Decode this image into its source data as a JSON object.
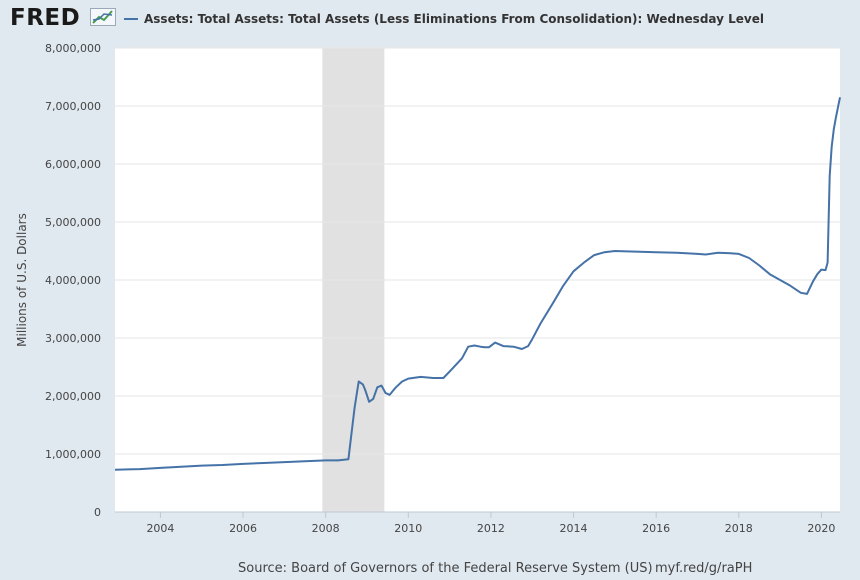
{
  "header": {
    "logo_text": "FRED",
    "legend_label": "Assets: Total Assets: Total Assets (Less Eliminations From Consolidation): Wednesday Level"
  },
  "footer": {
    "source": "Source: Board of Governors of the Federal Reserve System (US)",
    "link": "myf.red/g/raPH"
  },
  "chart_data": {
    "type": "line",
    "title": "Assets: Total Assets: Total Assets (Less Eliminations From Consolidation): Wednesday Level",
    "xlabel": "",
    "ylabel": "Millions of U.S. Dollars",
    "xlim": [
      2002.9,
      2020.45
    ],
    "ylim": [
      0,
      8000000
    ],
    "x_ticks": [
      2004,
      2006,
      2008,
      2010,
      2012,
      2014,
      2016,
      2018,
      2020
    ],
    "x_tick_labels": [
      "2004",
      "2006",
      "2008",
      "2010",
      "2012",
      "2014",
      "2016",
      "2018",
      "2020"
    ],
    "y_ticks": [
      0,
      1000000,
      2000000,
      3000000,
      4000000,
      5000000,
      6000000,
      7000000,
      8000000
    ],
    "y_tick_labels": [
      "0",
      "1,000,000",
      "2,000,000",
      "3,000,000",
      "4,000,000",
      "5,000,000",
      "6,000,000",
      "7,000,000",
      "8,000,000"
    ],
    "grid": true,
    "recession_shading": [
      {
        "start": 2007.92,
        "end": 2009.42
      }
    ],
    "series": [
      {
        "name": "Assets: Total Assets: Total Assets (Less Eliminations From Consolidation): Wednesday Level",
        "color": "#4572a7",
        "x": [
          2002.9,
          2003.5,
          2004.0,
          2004.5,
          2005.0,
          2005.5,
          2006.0,
          2006.5,
          2007.0,
          2007.5,
          2008.0,
          2008.3,
          2008.55,
          2008.7,
          2008.8,
          2008.9,
          2008.96,
          2009.05,
          2009.15,
          2009.25,
          2009.35,
          2009.45,
          2009.55,
          2009.7,
          2009.85,
          2010.0,
          2010.3,
          2010.6,
          2010.85,
          2011.0,
          2011.3,
          2011.45,
          2011.6,
          2011.75,
          2011.85,
          2011.95,
          2012.1,
          2012.3,
          2012.55,
          2012.75,
          2012.9,
          2013.0,
          2013.2,
          2013.5,
          2013.75,
          2014.0,
          2014.25,
          2014.5,
          2014.75,
          2015.0,
          2015.5,
          2016.0,
          2016.5,
          2017.0,
          2017.2,
          2017.5,
          2017.8,
          2018.0,
          2018.25,
          2018.5,
          2018.75,
          2019.0,
          2019.25,
          2019.5,
          2019.65,
          2019.8,
          2019.9,
          2020.0,
          2020.1,
          2020.15,
          2020.2,
          2020.25,
          2020.3,
          2020.35,
          2020.45
        ],
        "values": [
          730000,
          740000,
          760000,
          780000,
          800000,
          810000,
          830000,
          845000,
          860000,
          875000,
          890000,
          890000,
          910000,
          1800000,
          2250000,
          2200000,
          2100000,
          1900000,
          1950000,
          2150000,
          2180000,
          2050000,
          2020000,
          2150000,
          2250000,
          2300000,
          2330000,
          2310000,
          2310000,
          2420000,
          2650000,
          2850000,
          2870000,
          2850000,
          2840000,
          2840000,
          2920000,
          2860000,
          2850000,
          2810000,
          2860000,
          2980000,
          3250000,
          3600000,
          3900000,
          4150000,
          4300000,
          4430000,
          4480000,
          4500000,
          4490000,
          4480000,
          4470000,
          4450000,
          4440000,
          4470000,
          4460000,
          4450000,
          4380000,
          4250000,
          4100000,
          4000000,
          3900000,
          3780000,
          3760000,
          3980000,
          4100000,
          4180000,
          4170000,
          4300000,
          5800000,
          6300000,
          6600000,
          6800000,
          7150000
        ]
      }
    ]
  }
}
